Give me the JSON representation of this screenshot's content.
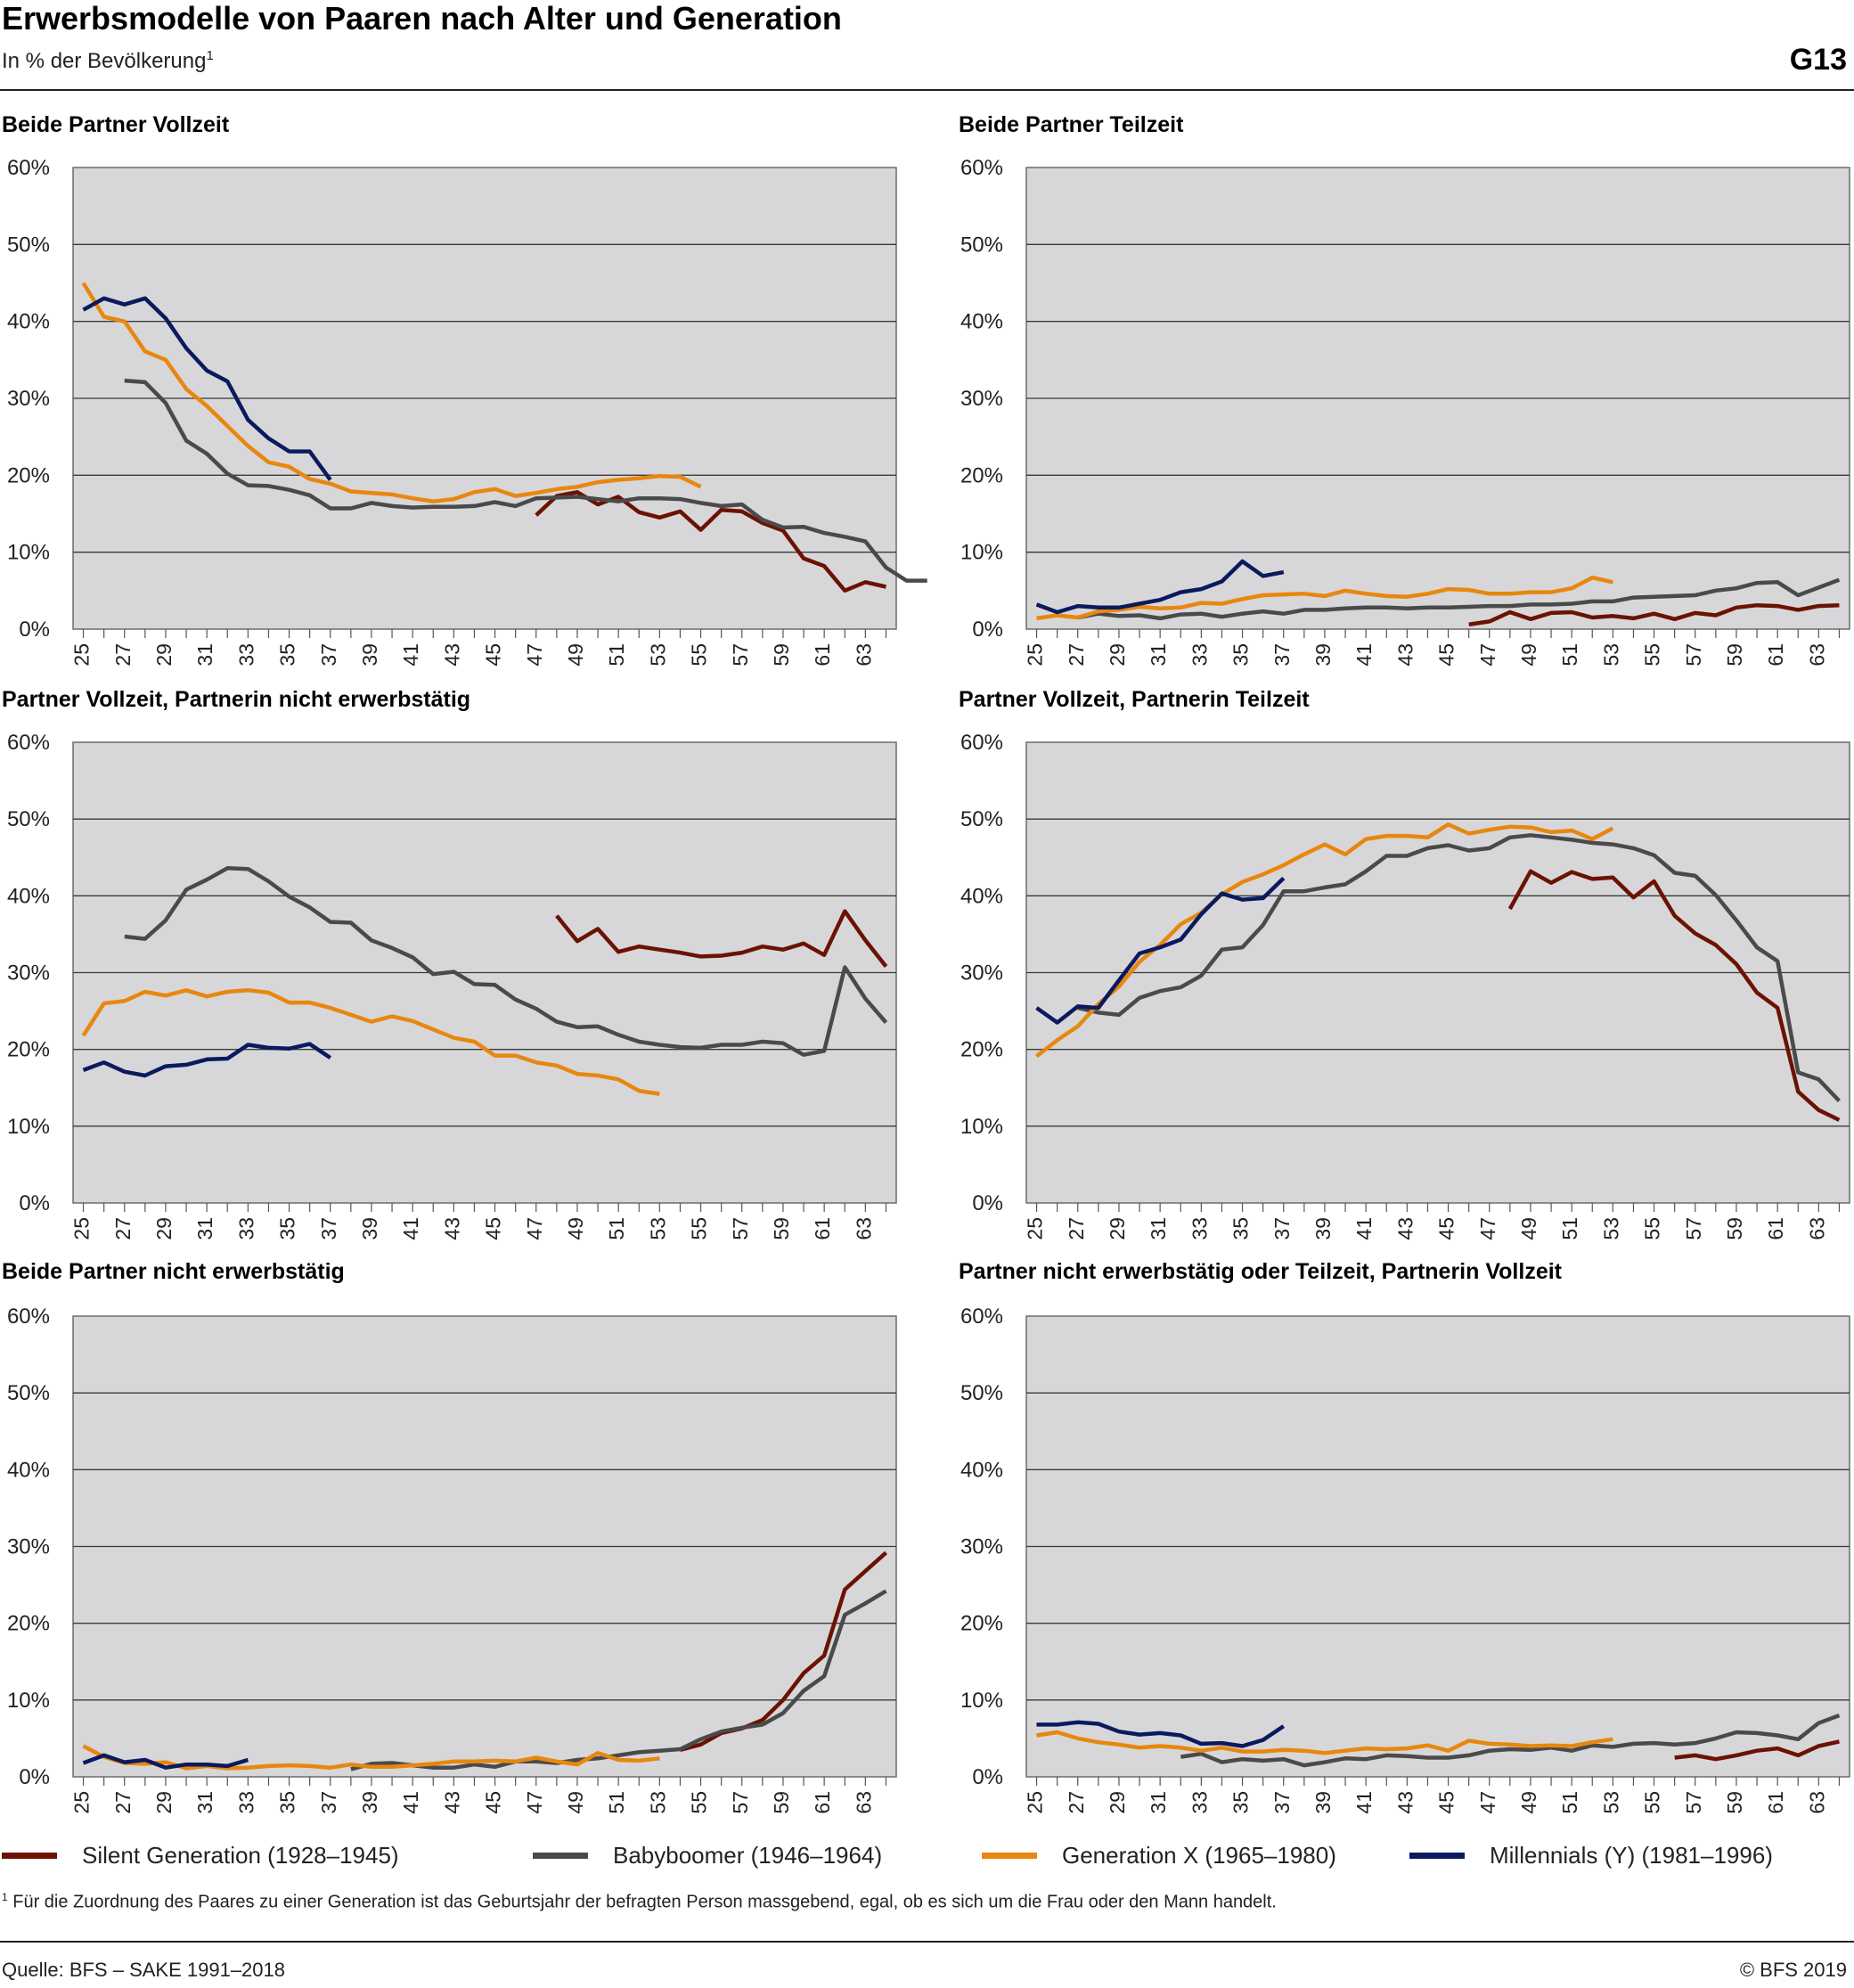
{
  "header": {
    "title": "Erwerbsmodelle von Paaren nach Alter und Generation",
    "subtitle": "In % der Bevölkerung",
    "subtitle_note": "1",
    "figure_id": "G13"
  },
  "legend": [
    {
      "name": "Silent Generation (1928–1945)",
      "color": "#6b1200"
    },
    {
      "name": "Babyboomer (1946–1964)",
      "color": "#4a4a4a"
    },
    {
      "name": "Generation X (1965–1980)",
      "color": "#e8870f"
    },
    {
      "name": "Millennials (Y) (1981–1996)",
      "color": "#0b1a5e"
    }
  ],
  "footnote": {
    "marker": "1",
    "text": "Für die Zuordnung des Paares zu einer Generation ist das Geburtsjahr der befragten Person massgebend, egal, ob es sich um die Frau oder den Mann handelt."
  },
  "source": "Quelle: BFS – SAKE 1991–2018",
  "copyright": "© BFS 2019",
  "chart_data": [
    {
      "type": "line",
      "title": "Beide Partner Vollzeit",
      "ylim": [
        0,
        60
      ],
      "x_ticks": [
        25,
        27,
        29,
        31,
        33,
        35,
        37,
        39,
        41,
        43,
        45,
        47,
        49,
        51,
        53,
        55,
        57,
        59,
        61,
        63
      ],
      "y_ticks": [
        "0%",
        "10%",
        "20%",
        "30%",
        "40%",
        "50%",
        "60%"
      ],
      "grid": true,
      "series": [
        {
          "name": "Silent Generation (1928–1945)",
          "color": "#6b1200",
          "x_start": 47,
          "values": [
            14.8,
            17.3,
            17.8,
            16.2,
            17.2,
            15.2,
            14.5,
            15.3,
            12.9,
            15.5,
            15.3,
            13.8,
            12.8,
            9.2,
            8.2,
            5.0,
            6.1,
            5.5
          ]
        },
        {
          "name": "Babyboomer (1946–1964)",
          "color": "#4a4a4a",
          "x_start": 27,
          "values": [
            32.3,
            32.1,
            29.4,
            24.5,
            22.8,
            20.2,
            18.7,
            18.6,
            18.1,
            17.4,
            15.7,
            15.7,
            16.4,
            16.0,
            15.8,
            15.9,
            15.9,
            16.0,
            16.5,
            16.0,
            17.0,
            17.1,
            17.2,
            16.9,
            16.6,
            17.0,
            17.0,
            16.9,
            16.4,
            16.0,
            16.2,
            14.2,
            13.2,
            13.3,
            12.5,
            12.0,
            11.4,
            8.0,
            6.3,
            6.3
          ]
        },
        {
          "name": "Generation X (1965–1980)",
          "color": "#e8870f",
          "x_start": 25,
          "values": [
            45.0,
            40.6,
            40.0,
            36.1,
            35.0,
            31.2,
            29.0,
            26.4,
            23.8,
            21.7,
            21.1,
            19.5,
            18.9,
            17.9,
            17.7,
            17.5,
            17.0,
            16.6,
            16.9,
            17.8,
            18.2,
            17.3,
            17.7,
            18.2,
            18.5,
            19.1,
            19.4,
            19.6,
            19.9,
            19.8,
            18.5
          ]
        },
        {
          "name": "Millennials (Y) (1981–1996)",
          "color": "#0b1a5e",
          "x_start": 25,
          "values": [
            41.5,
            43.0,
            42.2,
            43.0,
            40.4,
            36.5,
            33.6,
            32.2,
            27.2,
            24.8,
            23.1,
            23.1,
            19.4
          ]
        }
      ]
    },
    {
      "type": "line",
      "title": "Beide Partner Teilzeit",
      "ylim": [
        0,
        60
      ],
      "x_ticks": [
        25,
        27,
        29,
        31,
        33,
        35,
        37,
        39,
        41,
        43,
        45,
        47,
        49,
        51,
        53,
        55,
        57,
        59,
        61,
        63
      ],
      "y_ticks": [
        "0%",
        "10%",
        "20%",
        "30%",
        "40%",
        "50%",
        "60%"
      ],
      "grid": true,
      "series": [
        {
          "name": "Silent Generation (1928–1945)",
          "color": "#6b1200",
          "x_start": 46,
          "values": [
            0.6,
            1.0,
            2.2,
            1.3,
            2.1,
            2.2,
            1.5,
            1.7,
            1.4,
            2.0,
            1.3,
            2.1,
            1.8,
            2.8,
            3.1,
            3.0,
            2.5,
            3.0,
            3.1
          ]
        },
        {
          "name": "Babyboomer (1946–1964)",
          "color": "#4a4a4a",
          "x_start": 27,
          "values": [
            1.5,
            2.0,
            1.7,
            1.8,
            1.4,
            1.9,
            2.0,
            1.6,
            2.0,
            2.3,
            2.0,
            2.5,
            2.5,
            2.7,
            2.8,
            2.8,
            2.7,
            2.8,
            2.8,
            2.9,
            3.0,
            3.0,
            3.2,
            3.2,
            3.3,
            3.6,
            3.6,
            4.1,
            4.2,
            4.3,
            4.4,
            5.0,
            5.3,
            6.0,
            6.1,
            4.4,
            5.4,
            6.4
          ]
        },
        {
          "name": "Generation X (1965–1980)",
          "color": "#e8870f",
          "x_start": 25,
          "values": [
            1.4,
            1.8,
            1.5,
            2.3,
            2.5,
            2.9,
            2.7,
            2.8,
            3.4,
            3.3,
            3.9,
            4.4,
            4.5,
            4.6,
            4.3,
            5.0,
            4.6,
            4.3,
            4.2,
            4.6,
            5.2,
            5.1,
            4.6,
            4.6,
            4.8,
            4.8,
            5.3,
            6.7,
            6.1
          ]
        },
        {
          "name": "Millennials (Y) (1981–1996)",
          "color": "#0b1a5e",
          "x_start": 25,
          "values": [
            3.2,
            2.2,
            3.0,
            2.8,
            2.8,
            3.3,
            3.8,
            4.8,
            5.2,
            6.2,
            8.8,
            6.9,
            7.4
          ]
        }
      ]
    },
    {
      "type": "line",
      "title": "Partner Vollzeit, Partnerin nicht erwerbstätig",
      "ylim": [
        0,
        60
      ],
      "x_ticks": [
        25,
        27,
        29,
        31,
        33,
        35,
        37,
        39,
        41,
        43,
        45,
        47,
        49,
        51,
        53,
        55,
        57,
        59,
        61,
        63
      ],
      "y_ticks": [
        "0%",
        "10%",
        "20%",
        "30%",
        "40%",
        "50%",
        "60%"
      ],
      "grid": true,
      "series": [
        {
          "name": "Silent Generation (1928–1945)",
          "color": "#6b1200",
          "x_start": 48,
          "values": [
            37.4,
            34.1,
            35.7,
            32.7,
            33.4,
            33.0,
            32.6,
            32.1,
            32.2,
            32.6,
            33.4,
            33.0,
            33.8,
            32.3,
            38.0,
            34.2,
            30.8
          ]
        },
        {
          "name": "Babyboomer (1946–1964)",
          "color": "#4a4a4a",
          "x_start": 27,
          "values": [
            34.7,
            34.4,
            36.8,
            40.8,
            42.1,
            43.6,
            43.5,
            41.9,
            39.9,
            38.5,
            36.6,
            36.5,
            34.2,
            33.2,
            32.0,
            29.8,
            30.1,
            28.5,
            28.4,
            26.5,
            25.3,
            23.6,
            22.9,
            23.0,
            21.9,
            21.0,
            20.6,
            20.3,
            20.2,
            20.6,
            20.6,
            21.0,
            20.8,
            19.3,
            19.8,
            30.7,
            26.6,
            23.5
          ]
        },
        {
          "name": "Generation X (1965–1980)",
          "color": "#e8870f",
          "x_start": 25,
          "values": [
            21.8,
            26.0,
            26.3,
            27.5,
            27.0,
            27.7,
            26.9,
            27.5,
            27.7,
            27.4,
            26.1,
            26.1,
            25.4,
            24.5,
            23.6,
            24.3,
            23.7,
            22.6,
            21.5,
            21.0,
            19.2,
            19.2,
            18.3,
            17.9,
            16.8,
            16.6,
            16.1,
            14.6,
            14.2
          ]
        },
        {
          "name": "Millennials (Y) (1981–1996)",
          "color": "#0b1a5e",
          "x_start": 25,
          "values": [
            17.3,
            18.3,
            17.1,
            16.6,
            17.8,
            18.0,
            18.7,
            18.8,
            20.6,
            20.2,
            20.1,
            20.7,
            18.9
          ]
        }
      ]
    },
    {
      "type": "line",
      "title": "Partner Vollzeit, Partnerin Teilzeit",
      "ylim": [
        0,
        60
      ],
      "x_ticks": [
        25,
        27,
        29,
        31,
        33,
        35,
        37,
        39,
        41,
        43,
        45,
        47,
        49,
        51,
        53,
        55,
        57,
        59,
        61,
        63
      ],
      "y_ticks": [
        "0%",
        "10%",
        "20%",
        "30%",
        "40%",
        "50%",
        "60%"
      ],
      "grid": true,
      "series": [
        {
          "name": "Silent Generation (1928–1945)",
          "color": "#6b1200",
          "x_start": 48,
          "values": [
            38.3,
            43.2,
            41.7,
            43.1,
            42.2,
            42.4,
            39.8,
            41.9,
            37.4,
            35.1,
            33.6,
            31.1,
            27.4,
            25.4,
            14.5,
            12.1,
            10.8
          ]
        },
        {
          "name": "Babyboomer (1946–1964)",
          "color": "#4a4a4a",
          "x_start": 27,
          "values": [
            25.4,
            24.8,
            24.5,
            26.7,
            27.6,
            28.1,
            29.6,
            33.0,
            33.3,
            36.2,
            40.6,
            40.6,
            41.1,
            41.5,
            43.2,
            45.2,
            45.2,
            46.2,
            46.6,
            45.9,
            46.2,
            47.6,
            47.9,
            47.6,
            47.3,
            46.9,
            46.7,
            46.2,
            45.3,
            43.0,
            42.6,
            40.1,
            36.8,
            33.3,
            31.5,
            17.0,
            16.1,
            13.3
          ]
        },
        {
          "name": "Generation X (1965–1980)",
          "color": "#e8870f",
          "x_start": 25,
          "values": [
            19.1,
            21.2,
            23.0,
            25.9,
            28.2,
            31.4,
            33.6,
            36.3,
            37.8,
            40.2,
            41.8,
            42.8,
            44.0,
            45.4,
            46.7,
            45.4,
            47.4,
            47.8,
            47.8,
            47.6,
            49.3,
            48.1,
            48.6,
            49.0,
            48.9,
            48.3,
            48.5,
            47.4,
            48.8
          ]
        },
        {
          "name": "Millennials (Y) (1981–1996)",
          "color": "#0b1a5e",
          "x_start": 25,
          "values": [
            25.4,
            23.5,
            25.6,
            25.4,
            29.0,
            32.5,
            33.3,
            34.3,
            37.6,
            40.3,
            39.5,
            39.7,
            42.3
          ]
        }
      ]
    },
    {
      "type": "line",
      "title": "Beide Partner nicht erwerbstätig",
      "ylim": [
        0,
        60
      ],
      "x_ticks": [
        25,
        27,
        29,
        31,
        33,
        35,
        37,
        39,
        41,
        43,
        45,
        47,
        49,
        51,
        53,
        55,
        57,
        59,
        61,
        63
      ],
      "y_ticks": [
        "0%",
        "10%",
        "20%",
        "30%",
        "40%",
        "50%",
        "60%"
      ],
      "grid": true,
      "series": [
        {
          "name": "Silent Generation (1928–1945)",
          "color": "#6b1200",
          "x_start": 54,
          "values": [
            3.5,
            4.2,
            5.7,
            6.3,
            7.4,
            10.0,
            13.5,
            15.8,
            24.4,
            26.8,
            29.2
          ]
        },
        {
          "name": "Babyboomer (1946–1964)",
          "color": "#4a4a4a",
          "x_start": 38,
          "values": [
            1.0,
            1.7,
            1.8,
            1.5,
            1.2,
            1.2,
            1.6,
            1.3,
            2.0,
            2.0,
            1.8,
            2.2,
            2.4,
            2.8,
            3.2,
            3.4,
            3.6,
            4.9,
            5.9,
            6.4,
            6.8,
            8.3,
            11.2,
            13.1,
            21.1,
            22.6,
            24.2
          ]
        },
        {
          "name": "Generation X (1965–1980)",
          "color": "#e8870f",
          "x_start": 25,
          "values": [
            4.0,
            2.6,
            1.8,
            1.7,
            1.9,
            1.1,
            1.4,
            1.1,
            1.2,
            1.4,
            1.5,
            1.4,
            1.2,
            1.6,
            1.3,
            1.3,
            1.5,
            1.7,
            2.0,
            2.0,
            2.1,
            2.0,
            2.5,
            2.0,
            1.6,
            3.1,
            2.2,
            2.1,
            2.4
          ]
        },
        {
          "name": "Millennials (Y) (1981–1996)",
          "color": "#0b1a5e",
          "x_start": 25,
          "values": [
            1.8,
            2.8,
            1.9,
            2.2,
            1.2,
            1.6,
            1.6,
            1.4,
            2.2
          ]
        }
      ]
    },
    {
      "type": "line",
      "title": "Partner nicht erwerbstätig oder Teilzeit, Partnerin Vollzeit",
      "ylim": [
        0,
        60
      ],
      "x_ticks": [
        25,
        27,
        29,
        31,
        33,
        35,
        37,
        39,
        41,
        43,
        45,
        47,
        49,
        51,
        53,
        55,
        57,
        59,
        61,
        63
      ],
      "y_ticks": [
        "0%",
        "10%",
        "20%",
        "30%",
        "40%",
        "50%",
        "60%"
      ],
      "grid": true,
      "series": [
        {
          "name": "Silent Generation (1928–1945)",
          "color": "#6b1200",
          "x_start": 56,
          "values": [
            2.5,
            2.8,
            2.3,
            2.8,
            3.4,
            3.7,
            2.8,
            4.0,
            4.6
          ]
        },
        {
          "name": "Babyboomer (1946–1964)",
          "color": "#4a4a4a",
          "x_start": 32,
          "values": [
            2.6,
            3.0,
            1.9,
            2.3,
            2.1,
            2.3,
            1.5,
            1.9,
            2.4,
            2.3,
            2.8,
            2.7,
            2.5,
            2.5,
            2.8,
            3.4,
            3.6,
            3.5,
            3.8,
            3.4,
            4.1,
            3.9,
            4.3,
            4.4,
            4.2,
            4.4,
            5.0,
            5.8,
            5.7,
            5.4,
            4.9,
            7.0,
            8.0
          ]
        },
        {
          "name": "Generation X (1965–1980)",
          "color": "#e8870f",
          "x_start": 25,
          "values": [
            5.4,
            5.8,
            5.0,
            4.5,
            4.2,
            3.8,
            4.0,
            3.8,
            3.4,
            3.8,
            3.3,
            3.3,
            3.5,
            3.4,
            3.1,
            3.4,
            3.7,
            3.6,
            3.7,
            4.1,
            3.4,
            4.7,
            4.3,
            4.2,
            4.0,
            4.1,
            4.0,
            4.5,
            4.9
          ]
        },
        {
          "name": "Millennials (Y) (1981–1996)",
          "color": "#0b1a5e",
          "x_start": 25,
          "values": [
            6.8,
            6.8,
            7.1,
            6.9,
            5.9,
            5.5,
            5.7,
            5.4,
            4.3,
            4.4,
            4.0,
            4.8,
            6.6
          ]
        }
      ]
    }
  ]
}
